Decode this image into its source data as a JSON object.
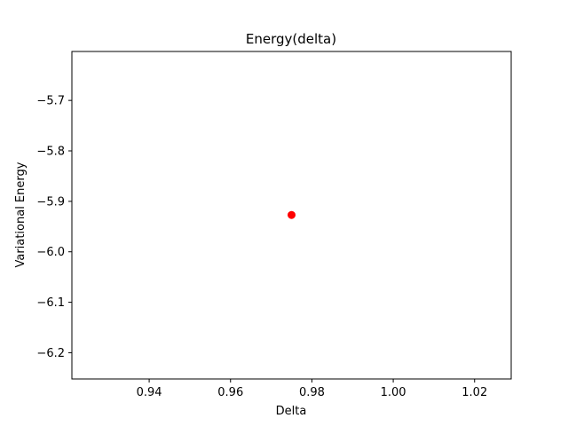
{
  "chart_data": {
    "type": "scatter",
    "title": "Energy(delta)",
    "xlabel": "Delta",
    "ylabel": "Variational Energy",
    "xlim": [
      0.921,
      1.029
    ],
    "ylim": [
      -6.252,
      -5.603
    ],
    "x_ticks": [
      {
        "value": 0.94,
        "label": "0.94"
      },
      {
        "value": 0.96,
        "label": "0.96"
      },
      {
        "value": 0.98,
        "label": "0.98"
      },
      {
        "value": 1.0,
        "label": "1.00"
      },
      {
        "value": 1.02,
        "label": "1.02"
      }
    ],
    "y_ticks": [
      {
        "value": -5.7,
        "label": "−5.7"
      },
      {
        "value": -5.8,
        "label": "−5.8"
      },
      {
        "value": -5.9,
        "label": "−5.9"
      },
      {
        "value": -6.0,
        "label": "−6.0"
      },
      {
        "value": -6.1,
        "label": "−6.1"
      },
      {
        "value": -6.2,
        "label": "−6.2"
      }
    ],
    "series": [
      {
        "color": "#ff0000",
        "marker": "circle",
        "points": [
          {
            "x": 0.975,
            "y": -5.927
          }
        ]
      }
    ],
    "grid": false,
    "legend": "none"
  }
}
